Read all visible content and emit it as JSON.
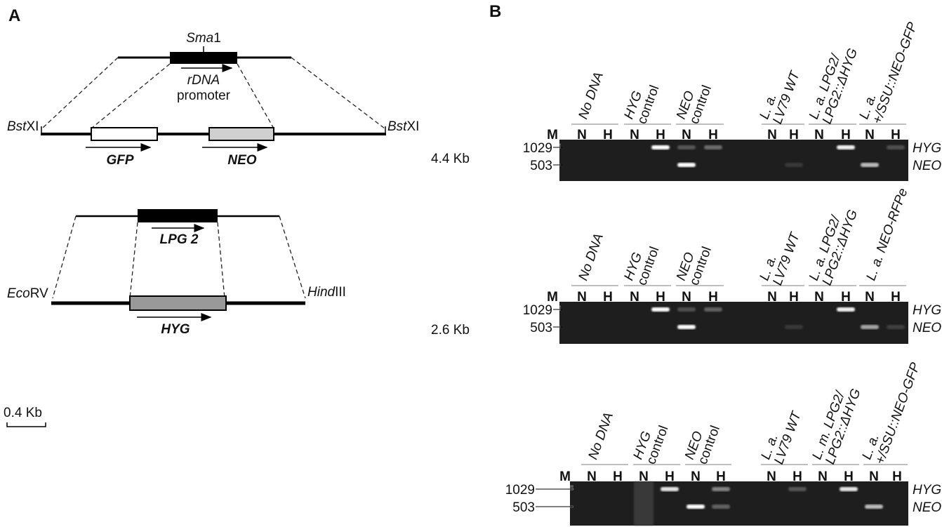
{
  "panel_a": {
    "label": "A",
    "construct_1": {
      "site_top": {
        "italic": "Sma",
        "plain": "1"
      },
      "promoter": [
        "rDNA",
        "promoter"
      ],
      "site_left": {
        "italic": "Bst",
        "plain": "XI"
      },
      "site_right": {
        "italic": "Bst",
        "plain": "XI"
      },
      "genes": [
        "GFP",
        "NEO"
      ],
      "size": "4.4 Kb"
    },
    "construct_2": {
      "gene_top": "LPG 2",
      "site_left": {
        "italic": "Eco",
        "plain": "RV"
      },
      "site_right": {
        "italic": "Hind",
        "plain": "III"
      },
      "gene": "HYG",
      "size": "2.6 Kb"
    },
    "scale": "0.4 Kb"
  },
  "panel_b": {
    "label": "B",
    "gels": [
      {
        "marker": "M",
        "sizes": [
          1029,
          503
        ],
        "band_labels": [
          "HYG",
          "NEO"
        ],
        "groups": [
          {
            "lines": [
              {
                "text": "No DNA",
                "italic": true
              }
            ],
            "lanes": [
              "N",
              "H"
            ]
          },
          {
            "lines": [
              {
                "text": "HYG",
                "italic": true
              },
              {
                "text": "control",
                "italic": false
              }
            ],
            "lanes": [
              "N",
              "H"
            ]
          },
          {
            "lines": [
              {
                "text": "NEO",
                "italic": true
              },
              {
                "text": "control",
                "italic": false
              }
            ],
            "lanes": [
              "N",
              "H"
            ]
          },
          {
            "lines": [
              {
                "text": "L. a.",
                "italic": true
              },
              {
                "text": "LV79 WT",
                "italic": true
              }
            ],
            "lanes": [
              "N",
              "H"
            ]
          },
          {
            "lines": [
              {
                "text": "L. a. LPG2/",
                "italic": true
              },
              {
                "text": "LPG2::ΔHYG",
                "italic": true
              }
            ],
            "lanes": [
              "N",
              "H"
            ]
          },
          {
            "lines": [
              {
                "text": "L. a.",
                "italic": true
              },
              {
                "text": "+/SSU::NEO-GFP",
                "italic": true
              }
            ],
            "lanes": [
              "N",
              "H"
            ]
          }
        ]
      },
      {
        "marker": "M",
        "sizes": [
          1029,
          503
        ],
        "band_labels": [
          "HYG",
          "NEO"
        ],
        "groups": [
          {
            "lines": [
              {
                "text": "No DNA",
                "italic": true
              }
            ],
            "lanes": [
              "N",
              "H"
            ]
          },
          {
            "lines": [
              {
                "text": "HYG",
                "italic": true
              },
              {
                "text": "control",
                "italic": false
              }
            ],
            "lanes": [
              "N",
              "H"
            ]
          },
          {
            "lines": [
              {
                "text": "NEO",
                "italic": true
              },
              {
                "text": "control",
                "italic": false
              }
            ],
            "lanes": [
              "N",
              "H"
            ]
          },
          {
            "lines": [
              {
                "text": "L. a.",
                "italic": true
              },
              {
                "text": "LV79 WT",
                "italic": true
              }
            ],
            "lanes": [
              "N",
              "H"
            ]
          },
          {
            "lines": [
              {
                "text": "L. a. LPG2/",
                "italic": true
              },
              {
                "text": "LPG2::ΔHYG",
                "italic": true
              }
            ],
            "lanes": [
              "N",
              "H"
            ]
          },
          {
            "lines": [
              {
                "text": "L. a. NEO-RFPe",
                "italic": true
              }
            ],
            "lanes": [
              "N",
              "H"
            ]
          }
        ]
      },
      {
        "marker": "M",
        "sizes": [
          1029,
          503
        ],
        "band_labels": [
          "HYG",
          "NEO"
        ],
        "groups": [
          {
            "lines": [
              {
                "text": "No DNA",
                "italic": true
              }
            ],
            "lanes": [
              "N",
              "H"
            ]
          },
          {
            "lines": [
              {
                "text": "HYG",
                "italic": true
              },
              {
                "text": "control",
                "italic": false
              }
            ],
            "lanes": [
              "N",
              "H"
            ]
          },
          {
            "lines": [
              {
                "text": "NEO",
                "italic": true
              },
              {
                "text": "control",
                "italic": false
              }
            ],
            "lanes": [
              "N",
              "H"
            ]
          },
          {
            "lines": [
              {
                "text": "L. a.",
                "italic": true
              },
              {
                "text": "LV79 WT",
                "italic": true
              }
            ],
            "lanes": [
              "N",
              "H"
            ]
          },
          {
            "lines": [
              {
                "text": "L. m. LPG2/",
                "italic": true
              },
              {
                "text": "LPG2::ΔHYG",
                "italic": true
              }
            ],
            "lanes": [
              "N",
              "H"
            ]
          },
          {
            "lines": [
              {
                "text": "L. a.",
                "italic": true
              },
              {
                "text": "+/SSU::NEO-GFP",
                "italic": true
              }
            ],
            "lanes": [
              "N",
              "H"
            ]
          }
        ]
      }
    ]
  }
}
